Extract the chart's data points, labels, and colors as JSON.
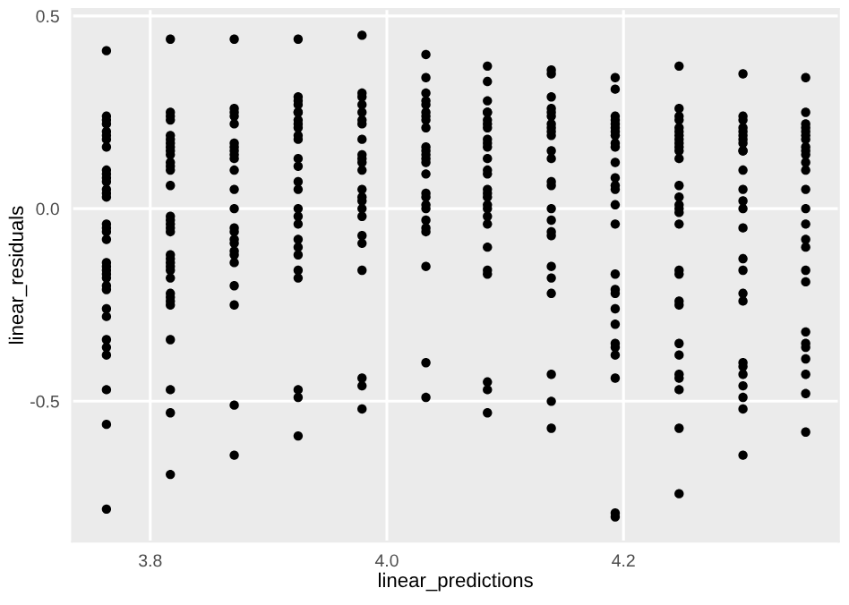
{
  "chart_data": {
    "type": "scatter",
    "xlabel": "linear_predictions",
    "ylabel": "linear_residuals",
    "xlim": [
      3.734,
      4.382
    ],
    "ylim": [
      -0.864,
      0.518
    ],
    "xticks": [
      3.8,
      {
        "value": 4.0,
        "label": "4.0"
      },
      4.2
    ],
    "yticks": [
      -0.5,
      {
        "value": 0.0,
        "label": "0.0"
      },
      0.5
    ],
    "grid": true,
    "marker": "circle",
    "legend": false,
    "series": [
      {
        "color": "#000000",
        "x": [
          3.763,
          3.763,
          3.763,
          3.763,
          3.763,
          3.763,
          3.763,
          3.763,
          3.763,
          3.763,
          3.763,
          3.763,
          3.763,
          3.763,
          3.763,
          3.763,
          3.763,
          3.763,
          3.763,
          3.763,
          3.763,
          3.763,
          3.763,
          3.763,
          3.763,
          3.763,
          3.763,
          3.763,
          3.763,
          3.763,
          3.763,
          3.763,
          3.763,
          3.763,
          3.817,
          3.817,
          3.817,
          3.817,
          3.817,
          3.817,
          3.817,
          3.817,
          3.817,
          3.817,
          3.817,
          3.817,
          3.817,
          3.817,
          3.817,
          3.817,
          3.817,
          3.817,
          3.817,
          3.817,
          3.817,
          3.817,
          3.817,
          3.817,
          3.817,
          3.817,
          3.817,
          3.817,
          3.817,
          3.817,
          3.817,
          3.817,
          3.817,
          3.871,
          3.871,
          3.871,
          3.871,
          3.871,
          3.871,
          3.871,
          3.871,
          3.871,
          3.871,
          3.871,
          3.871,
          3.871,
          3.871,
          3.871,
          3.871,
          3.871,
          3.871,
          3.871,
          3.871,
          3.871,
          3.871,
          3.871,
          3.871,
          3.925,
          3.925,
          3.925,
          3.925,
          3.925,
          3.925,
          3.925,
          3.925,
          3.925,
          3.925,
          3.925,
          3.925,
          3.925,
          3.925,
          3.925,
          3.925,
          3.925,
          3.925,
          3.925,
          3.925,
          3.925,
          3.925,
          3.925,
          3.925,
          3.925,
          3.925,
          3.979,
          3.979,
          3.979,
          3.979,
          3.979,
          3.979,
          3.979,
          3.979,
          3.979,
          3.979,
          3.979,
          3.979,
          3.979,
          3.979,
          3.979,
          3.979,
          3.979,
          3.979,
          3.979,
          3.979,
          3.979,
          3.979,
          3.979,
          4.033,
          4.033,
          4.033,
          4.033,
          4.033,
          4.033,
          4.033,
          4.033,
          4.033,
          4.033,
          4.033,
          4.033,
          4.033,
          4.033,
          4.033,
          4.033,
          4.033,
          4.033,
          4.033,
          4.033,
          4.033,
          4.033,
          4.033,
          4.033,
          4.033,
          4.085,
          4.085,
          4.085,
          4.085,
          4.085,
          4.085,
          4.085,
          4.085,
          4.085,
          4.085,
          4.085,
          4.085,
          4.085,
          4.085,
          4.085,
          4.085,
          4.085,
          4.085,
          4.085,
          4.085,
          4.085,
          4.085,
          4.085,
          4.085,
          4.085,
          4.085,
          4.085,
          4.139,
          4.139,
          4.139,
          4.139,
          4.139,
          4.139,
          4.139,
          4.139,
          4.139,
          4.139,
          4.139,
          4.139,
          4.139,
          4.139,
          4.139,
          4.139,
          4.139,
          4.139,
          4.139,
          4.139,
          4.139,
          4.139,
          4.139,
          4.139,
          4.193,
          4.193,
          4.193,
          4.193,
          4.193,
          4.193,
          4.193,
          4.193,
          4.193,
          4.193,
          4.193,
          4.193,
          4.193,
          4.193,
          4.193,
          4.193,
          4.193,
          4.193,
          4.193,
          4.193,
          4.193,
          4.193,
          4.193,
          4.193,
          4.193,
          4.193,
          4.193,
          4.247,
          4.247,
          4.247,
          4.247,
          4.247,
          4.247,
          4.247,
          4.247,
          4.247,
          4.247,
          4.247,
          4.247,
          4.247,
          4.247,
          4.247,
          4.247,
          4.247,
          4.247,
          4.247,
          4.247,
          4.247,
          4.247,
          4.247,
          4.247,
          4.247,
          4.247,
          4.247,
          4.247,
          4.247,
          4.301,
          4.301,
          4.301,
          4.301,
          4.301,
          4.301,
          4.301,
          4.301,
          4.301,
          4.301,
          4.301,
          4.301,
          4.301,
          4.301,
          4.301,
          4.301,
          4.301,
          4.301,
          4.301,
          4.301,
          4.301,
          4.301,
          4.301,
          4.301,
          4.301,
          4.301,
          4.354,
          4.354,
          4.354,
          4.354,
          4.354,
          4.354,
          4.354,
          4.354,
          4.354,
          4.354,
          4.354,
          4.354,
          4.354,
          4.354,
          4.354,
          4.354,
          4.354,
          4.354,
          4.354,
          4.354,
          4.354,
          4.354,
          4.354,
          4.354,
          4.354,
          4.354
        ],
        "values": [
          0.41,
          0.24,
          0.23,
          0.22,
          0.2,
          0.19,
          0.18,
          0.16,
          0.1,
          0.09,
          0.08,
          0.07,
          0.05,
          0.04,
          0.03,
          -0.04,
          -0.05,
          -0.06,
          -0.08,
          -0.14,
          -0.15,
          -0.16,
          -0.17,
          -0.18,
          -0.2,
          -0.21,
          -0.26,
          -0.28,
          -0.34,
          -0.36,
          -0.38,
          -0.47,
          -0.56,
          -0.78,
          0.44,
          0.25,
          0.24,
          0.23,
          0.19,
          0.18,
          0.17,
          0.16,
          0.15,
          0.14,
          0.12,
          0.11,
          0.1,
          0.06,
          -0.02,
          -0.03,
          -0.04,
          -0.05,
          -0.06,
          -0.12,
          -0.13,
          -0.14,
          -0.15,
          -0.16,
          -0.18,
          -0.22,
          -0.23,
          -0.24,
          -0.25,
          -0.34,
          -0.47,
          -0.53,
          -0.69,
          0.44,
          0.26,
          0.25,
          0.24,
          0.22,
          0.17,
          0.16,
          0.15,
          0.14,
          0.13,
          0.1,
          0.05,
          0.0,
          -0.05,
          -0.06,
          -0.08,
          -0.09,
          -0.11,
          -0.12,
          -0.14,
          -0.2,
          -0.25,
          -0.51,
          -0.64,
          0.44,
          0.29,
          0.28,
          0.27,
          0.25,
          0.25,
          0.23,
          0.22,
          0.21,
          0.19,
          0.18,
          0.13,
          0.11,
          0.07,
          0.05,
          0.0,
          -0.02,
          -0.04,
          -0.08,
          -0.1,
          -0.12,
          -0.16,
          -0.18,
          -0.47,
          -0.49,
          -0.59,
          0.45,
          0.3,
          0.29,
          0.27,
          0.25,
          0.23,
          0.22,
          0.18,
          0.14,
          0.13,
          0.12,
          0.1,
          0.05,
          0.03,
          0.02,
          0.0,
          -0.02,
          -0.07,
          -0.09,
          -0.16,
          -0.44,
          -0.46,
          -0.52,
          0.4,
          0.34,
          0.3,
          0.28,
          0.27,
          0.25,
          0.24,
          0.23,
          0.21,
          0.16,
          0.15,
          0.14,
          0.13,
          0.12,
          0.09,
          0.04,
          0.03,
          0.01,
          0.0,
          -0.03,
          -0.05,
          -0.06,
          -0.15,
          -0.4,
          -0.49,
          0.37,
          0.33,
          0.28,
          0.25,
          0.25,
          0.23,
          0.22,
          0.21,
          0.18,
          0.17,
          0.16,
          0.13,
          0.1,
          0.09,
          0.05,
          0.04,
          0.03,
          0.01,
          0.0,
          -0.02,
          -0.04,
          -0.1,
          -0.16,
          -0.17,
          -0.45,
          -0.47,
          -0.53,
          0.36,
          0.35,
          0.29,
          0.26,
          0.25,
          0.24,
          0.22,
          0.21,
          0.2,
          0.19,
          0.15,
          0.13,
          0.07,
          0.06,
          0.0,
          -0.03,
          -0.06,
          -0.07,
          -0.15,
          -0.18,
          -0.22,
          -0.43,
          -0.5,
          -0.57,
          0.34,
          0.31,
          0.24,
          0.23,
          0.22,
          0.21,
          0.2,
          0.19,
          0.17,
          0.16,
          0.12,
          0.08,
          0.06,
          0.05,
          0.01,
          -0.04,
          -0.17,
          -0.21,
          -0.22,
          -0.26,
          -0.3,
          -0.35,
          -0.36,
          -0.38,
          -0.44,
          -0.79,
          -0.8,
          0.37,
          0.26,
          0.24,
          0.23,
          0.21,
          0.2,
          0.19,
          0.18,
          0.17,
          0.16,
          0.15,
          0.13,
          0.06,
          0.03,
          0.01,
          0.0,
          -0.01,
          -0.04,
          -0.16,
          -0.17,
          -0.24,
          -0.25,
          -0.35,
          -0.38,
          -0.43,
          -0.44,
          -0.47,
          -0.57,
          -0.74,
          0.35,
          0.24,
          0.23,
          0.21,
          0.2,
          0.19,
          0.18,
          0.17,
          0.15,
          0.15,
          0.1,
          0.05,
          0.02,
          0.0,
          -0.05,
          -0.13,
          -0.16,
          -0.22,
          -0.24,
          -0.4,
          -0.41,
          -0.43,
          -0.46,
          -0.49,
          -0.52,
          -0.64,
          0.34,
          0.25,
          0.22,
          0.21,
          0.2,
          0.19,
          0.18,
          0.16,
          0.15,
          0.14,
          0.12,
          0.1,
          0.05,
          0.0,
          -0.04,
          -0.08,
          -0.1,
          -0.16,
          -0.19,
          -0.32,
          -0.35,
          -0.36,
          -0.39,
          -0.43,
          -0.48,
          -0.58
        ]
      }
    ]
  }
}
